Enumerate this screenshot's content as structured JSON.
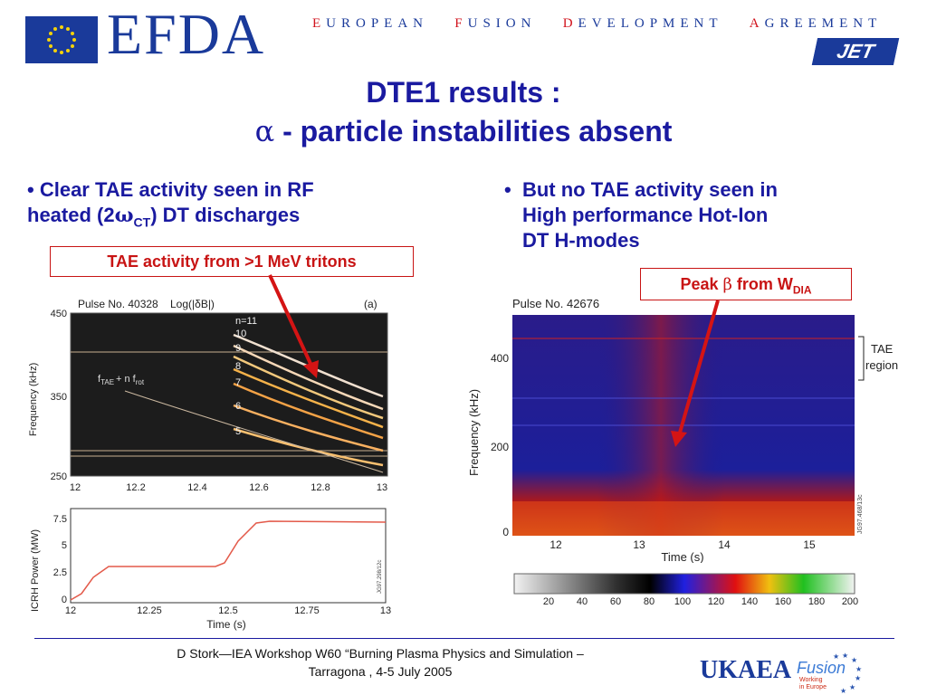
{
  "header": {
    "logo_text": "EFDA",
    "tagline_parts": [
      {
        "first": "E",
        "rest": "UROPEAN"
      },
      {
        "first": "F",
        "rest": "USION"
      },
      {
        "first": "D",
        "rest": "EVELOPMENT"
      },
      {
        "first": "A",
        "rest": "GREEMENT"
      }
    ],
    "jet_logo": "JET"
  },
  "title": {
    "line1": "DTE1 results :",
    "line2_greek": "α",
    "line2_text": " - particle instabilities absent"
  },
  "left": {
    "bullet_mark": "•",
    "bullet_line1": "Clear TAE activity seen in RF",
    "bullet_line2_pre": "heated (2",
    "bullet_line2_omega": "ω",
    "bullet_line2_sub": "CT",
    "bullet_line2_post": ")  DT discharges",
    "callout": "TAE activity from >1 MeV tritons",
    "figure": {
      "pulse": "Pulse No. 40328",
      "log_label": "Log(|δB|)",
      "panel": "(a)",
      "ylabel_top": "Frequency (kHz)",
      "yticks_top": [
        "450",
        "350",
        "250"
      ],
      "xticks_top": [
        "12",
        "12.2",
        "12.4",
        "12.6",
        "12.8",
        "13"
      ],
      "mode_labels": [
        "n=11",
        "10",
        "9",
        "8",
        "7",
        "6",
        "5"
      ],
      "formula": "f",
      "formula_sub": "TAE",
      "formula_mid": "+ n f",
      "formula_sub2": "rot",
      "ylabel_bottom": "ICRH Power (MW)",
      "yticks_bottom": [
        "7.5",
        "5",
        "2.5",
        "0"
      ],
      "xticks_bottom": [
        "12",
        "12.25",
        "12.5",
        "12.75",
        "13"
      ],
      "xlabel_bottom": "Time (s)",
      "side_code_top": "JG97.298/12c",
      "side_code_bottom": "JG97.298/12c"
    }
  },
  "right": {
    "bullet_mark": "•",
    "bullet_line1": "But no TAE activity seen in",
    "bullet_line2": "High performance Hot-Ion",
    "bullet_line3": "DT H-modes",
    "callout_pre": "Peak ",
    "callout_greek": "β",
    "callout_mid": " from W",
    "callout_sub": "DIA",
    "figure": {
      "pulse": "Pulse No. 42676",
      "ylabel": "Frequency (kHz)",
      "yticks": [
        "400",
        "200",
        "0"
      ],
      "xticks": [
        "12",
        "13",
        "14",
        "15"
      ],
      "xlabel": "Time (s)",
      "tae_label_1": "TAE",
      "tae_label_2": "region",
      "side_code": "JG97.468/13c",
      "colorbar_ticks": [
        "20",
        "40",
        "60",
        "80",
        "100",
        "120",
        "140",
        "160",
        "180",
        "200"
      ]
    }
  },
  "footer": {
    "line1": "D Stork—IEA Workshop W60 “Burning Plasma Physics and Simulation –",
    "line2": "Tarragona , 4-5 July 2005",
    "ukaea": "UKAEA",
    "fusion": "Fusion",
    "working_in_europe_1": "Working",
    "working_in_europe_2": "in Europe"
  },
  "colors": {
    "title_blue": "#1a1aa0",
    "callout_red": "#c81414",
    "efda_blue": "#1a3a9a"
  }
}
